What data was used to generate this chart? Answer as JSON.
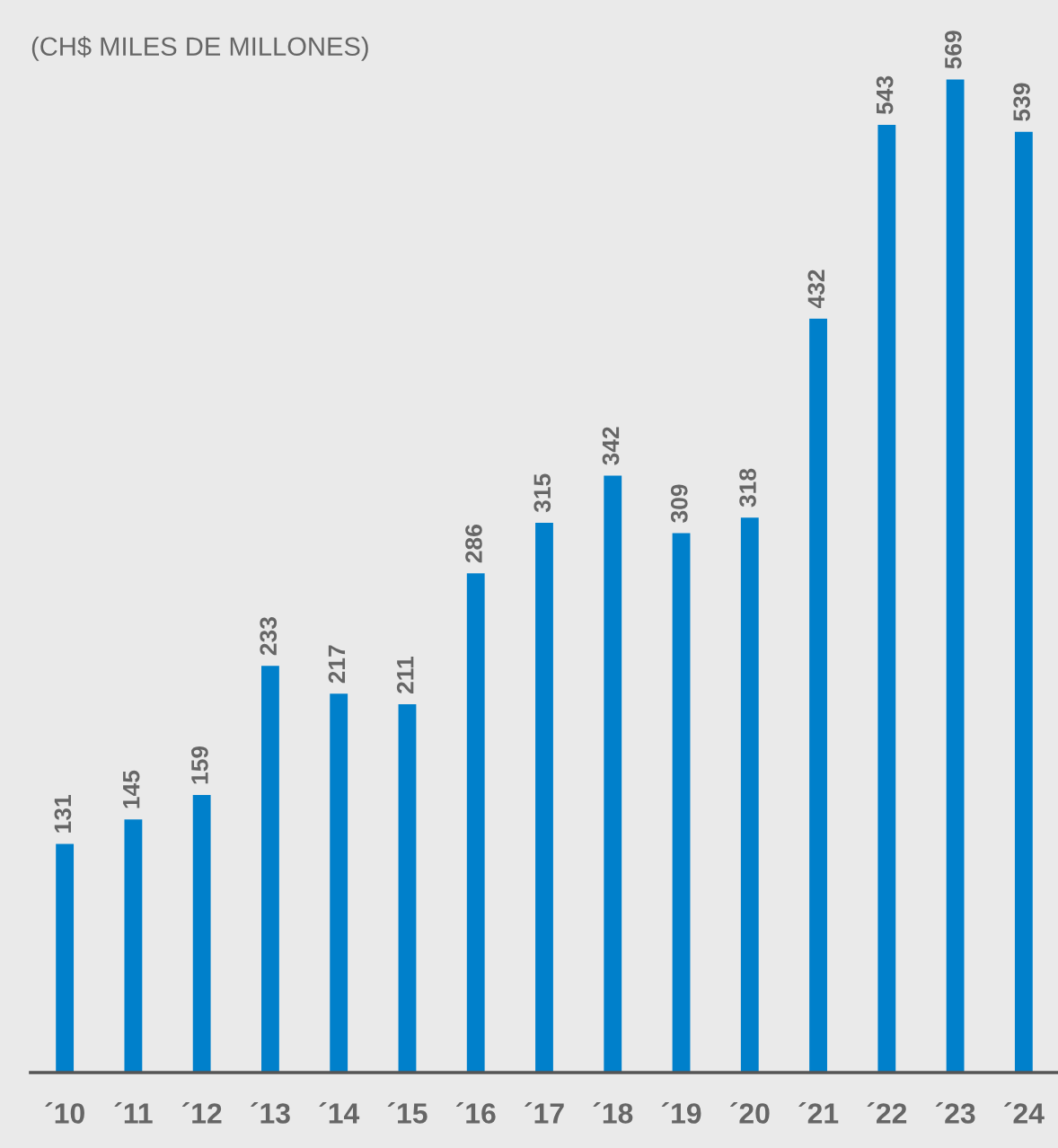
{
  "chart_data": {
    "type": "bar",
    "title": "(CH$ MILES DE MILLONES)",
    "categories": [
      "´10",
      "´11",
      "´12",
      "´13",
      "´14",
      "´15",
      "´16",
      "´17",
      "´18",
      "´19",
      "´20",
      "´21",
      "´22",
      "´23",
      "´24"
    ],
    "values": [
      131,
      145,
      159,
      233,
      217,
      211,
      286,
      315,
      342,
      309,
      318,
      432,
      543,
      569,
      539
    ],
    "color": "#0080cb",
    "data_labels": true
  }
}
